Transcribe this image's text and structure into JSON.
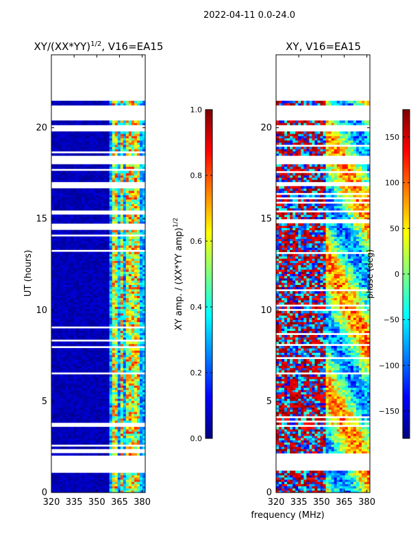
{
  "suptitle": "2022-04-11 0.0-24.0",
  "shared_xlabel": "frequency (MHz)",
  "chart_data": [
    {
      "type": "heatmap",
      "title": "XY/(XX*YY)",
      "title_sup": "1/2",
      "title_suffix": ", V16=EA15",
      "xlabel": "frequency (MHz)",
      "ylabel": "UT (hours)",
      "xlim": [
        320,
        382
      ],
      "ylim": [
        0,
        24
      ],
      "xticks": [
        320,
        335,
        350,
        365,
        380
      ],
      "yticks": [
        0,
        5,
        10,
        15,
        20
      ],
      "clim": [
        0.0,
        1.0
      ],
      "colorbar": {
        "label": "XY amp. / (XX*YY amp)",
        "label_sup": "1/2",
        "ticks": [
          "0.0",
          "0.2",
          "0.4",
          "0.6",
          "0.8",
          "1.0"
        ],
        "tick_values": [
          0.0,
          0.2,
          0.4,
          0.6,
          0.8,
          1.0
        ],
        "range": [
          0.0,
          1.0
        ]
      },
      "data_gaps_hours": [
        [
          1.2,
          2.0
        ],
        [
          16.8,
          17.0
        ],
        [
          18.0,
          18.5
        ],
        [
          19.8,
          20.1
        ],
        [
          20.4,
          21.2
        ],
        [
          21.5,
          24.0
        ]
      ],
      "bright_channels_MHz": [
        [
          360,
          364
        ],
        [
          366,
          368
        ],
        [
          369,
          372
        ],
        [
          373,
          376
        ],
        [
          377,
          379
        ]
      ],
      "description": "mostly low (~0.0-0.1) at 320-360 MHz; 0.3-0.9 in channels above 360 MHz"
    },
    {
      "type": "heatmap",
      "title": "XY",
      "title_sup": "",
      "title_suffix": ", V16=EA15",
      "xlabel": "frequency (MHz)",
      "ylabel": "",
      "xlim": [
        320,
        382
      ],
      "ylim": [
        0,
        24
      ],
      "xticks": [
        320,
        335,
        350,
        365,
        380
      ],
      "yticks": [
        0,
        5,
        10,
        15,
        20
      ],
      "clim": [
        -180,
        180
      ],
      "colorbar": {
        "label": "phase (deg)",
        "label_sup": "",
        "ticks": [
          "−150",
          "−100",
          "−50",
          "0",
          "50",
          "100",
          "150"
        ],
        "tick_values": [
          -150,
          -100,
          -50,
          0,
          50,
          100,
          150
        ],
        "range": [
          -180,
          180
        ]
      },
      "data_gaps_hours": [
        [
          1.2,
          2.0
        ],
        [
          16.8,
          17.0
        ],
        [
          18.0,
          18.5
        ],
        [
          19.8,
          20.1
        ],
        [
          20.4,
          21.2
        ],
        [
          21.5,
          24.0
        ]
      ],
      "description": "phase varies across full -180 to 180 range; noisy red/blue at low frequencies, smoother structures above 360 MHz"
    }
  ]
}
